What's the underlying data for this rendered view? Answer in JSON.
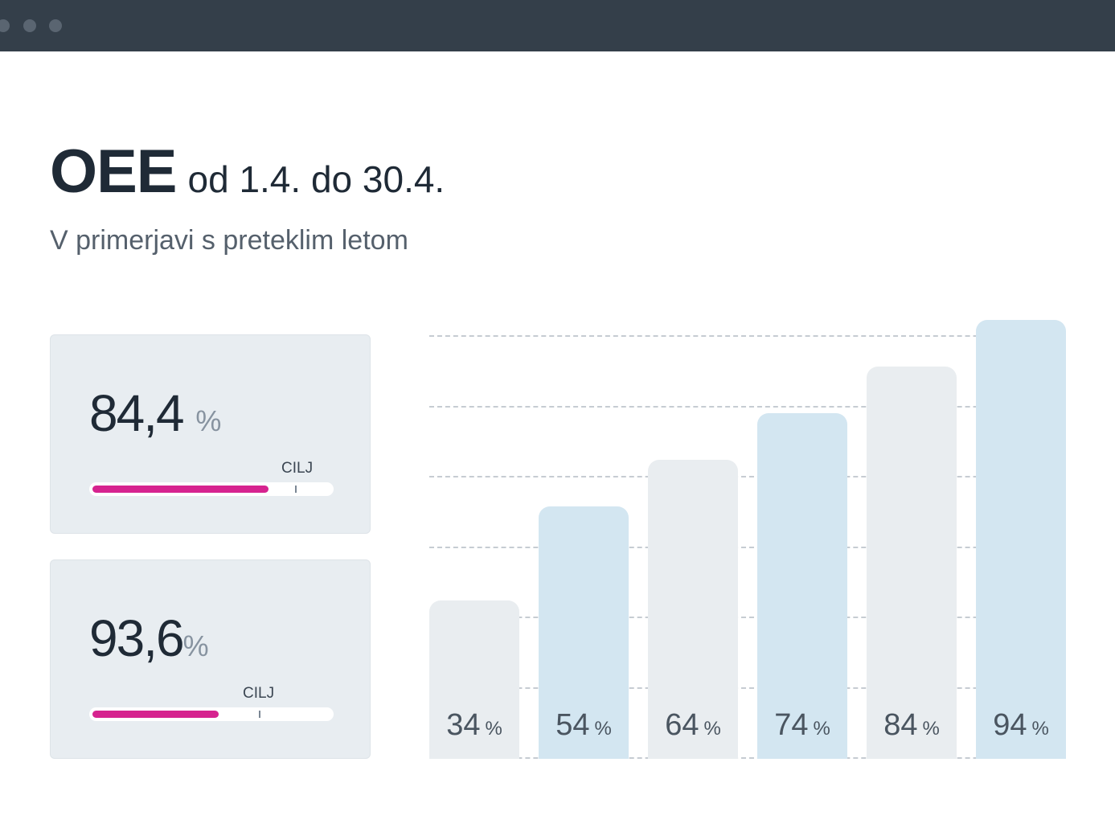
{
  "header": {
    "title": "OEE",
    "range": "od 1.4. do 30.4.",
    "subtitle": "V primerjavi s preteklim letom"
  },
  "cards": [
    {
      "value": "84,4",
      "unit": "%",
      "goal_label": "CILJ",
      "progress": 0.74,
      "goal": 0.85
    },
    {
      "value": "93,6",
      "unit": "%",
      "goal_label": "CILJ",
      "progress": 0.53,
      "goal": 0.7
    }
  ],
  "colors": {
    "accent": "#d6238f",
    "bar_blue": "#d3e6f1",
    "bar_gray": "#e9edf0",
    "titlebar": "#343f4a"
  },
  "chart_data": {
    "type": "bar",
    "categories": [
      "",
      "",
      "",
      "",
      "",
      ""
    ],
    "values": [
      34,
      54,
      64,
      74,
      84,
      94
    ],
    "value_labels": [
      "34",
      "54",
      "64",
      "74",
      "84",
      "94"
    ],
    "unit": "%",
    "grid": true,
    "ylim": [
      0,
      94
    ]
  }
}
